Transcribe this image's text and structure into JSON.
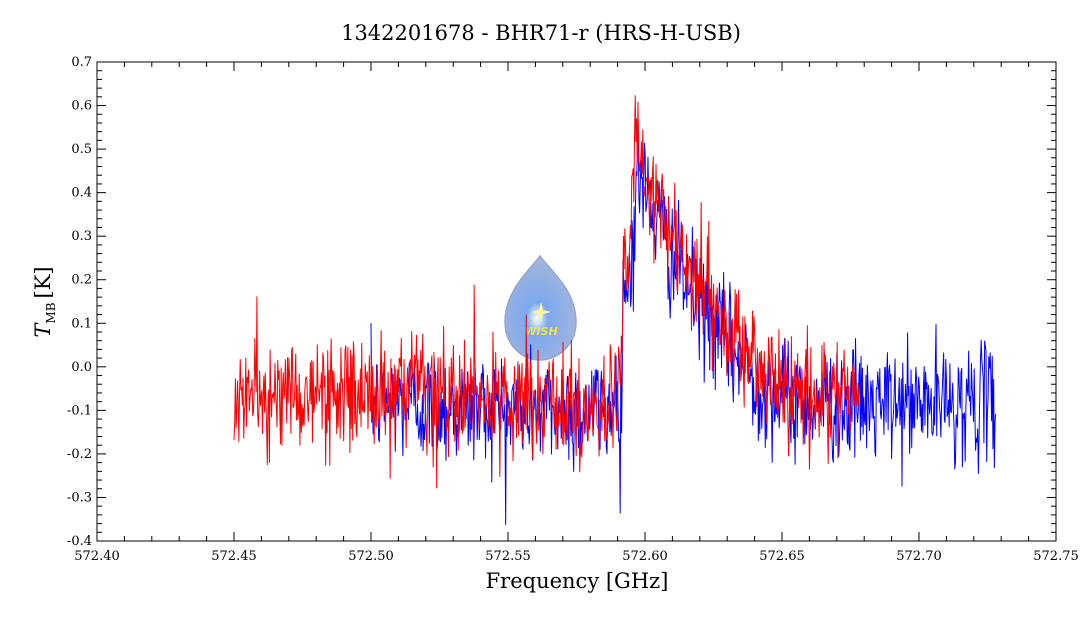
{
  "chart_data": {
    "type": "line",
    "title": "1342201678 - BHR71-r (HRS-H-USB)",
    "xlabel": "Frequency [GHz]",
    "ylabel_main": "T",
    "ylabel_sub": "MB",
    "ylabel_unit": "[K]",
    "xlim": [
      572.4,
      572.75
    ],
    "ylim": [
      -0.4,
      0.7
    ],
    "x_ticks": [
      "572.40",
      "572.45",
      "572.50",
      "572.55",
      "572.60",
      "572.65",
      "572.70",
      "572.75"
    ],
    "y_ticks": [
      "-0.4",
      "-0.3",
      "-0.2",
      "-0.1",
      "0.0",
      "0.1",
      "0.2",
      "0.3",
      "0.4",
      "0.5",
      "0.6",
      "0.7"
    ],
    "grid": false,
    "series": [
      {
        "color": "#0000ff",
        "x_range": [
          572.5,
          572.728
        ],
        "profile": [
          [
            572.5,
            -0.08
          ],
          [
            572.55,
            -0.1
          ],
          [
            572.585,
            -0.1
          ],
          [
            572.5915,
            -0.06
          ],
          [
            572.592,
            0.18
          ],
          [
            572.594,
            0.2
          ],
          [
            572.596,
            0.3
          ],
          [
            572.597,
            0.45
          ],
          [
            572.599,
            0.42
          ],
          [
            572.603,
            0.36
          ],
          [
            572.61,
            0.25
          ],
          [
            572.62,
            0.14
          ],
          [
            572.63,
            0.05
          ],
          [
            572.64,
            -0.03
          ],
          [
            572.65,
            -0.07
          ],
          [
            572.68,
            -0.09
          ],
          [
            572.728,
            -0.08
          ]
        ],
        "noise": 0.065
      },
      {
        "color": "#ff0000",
        "x_range": [
          572.45,
          572.678
        ],
        "profile": [
          [
            572.45,
            -0.07
          ],
          [
            572.5,
            -0.06
          ],
          [
            572.55,
            -0.08
          ],
          [
            572.585,
            -0.1
          ],
          [
            572.5915,
            -0.05
          ],
          [
            572.592,
            0.2
          ],
          [
            572.594,
            0.22
          ],
          [
            572.596,
            0.45
          ],
          [
            572.597,
            0.55
          ],
          [
            572.599,
            0.45
          ],
          [
            572.603,
            0.38
          ],
          [
            572.61,
            0.28
          ],
          [
            572.62,
            0.18
          ],
          [
            572.63,
            0.08
          ],
          [
            572.64,
            0.02
          ],
          [
            572.65,
            -0.05
          ],
          [
            572.678,
            -0.07
          ]
        ],
        "noise": 0.065
      }
    ]
  },
  "logo": {
    "text": "WISH"
  }
}
